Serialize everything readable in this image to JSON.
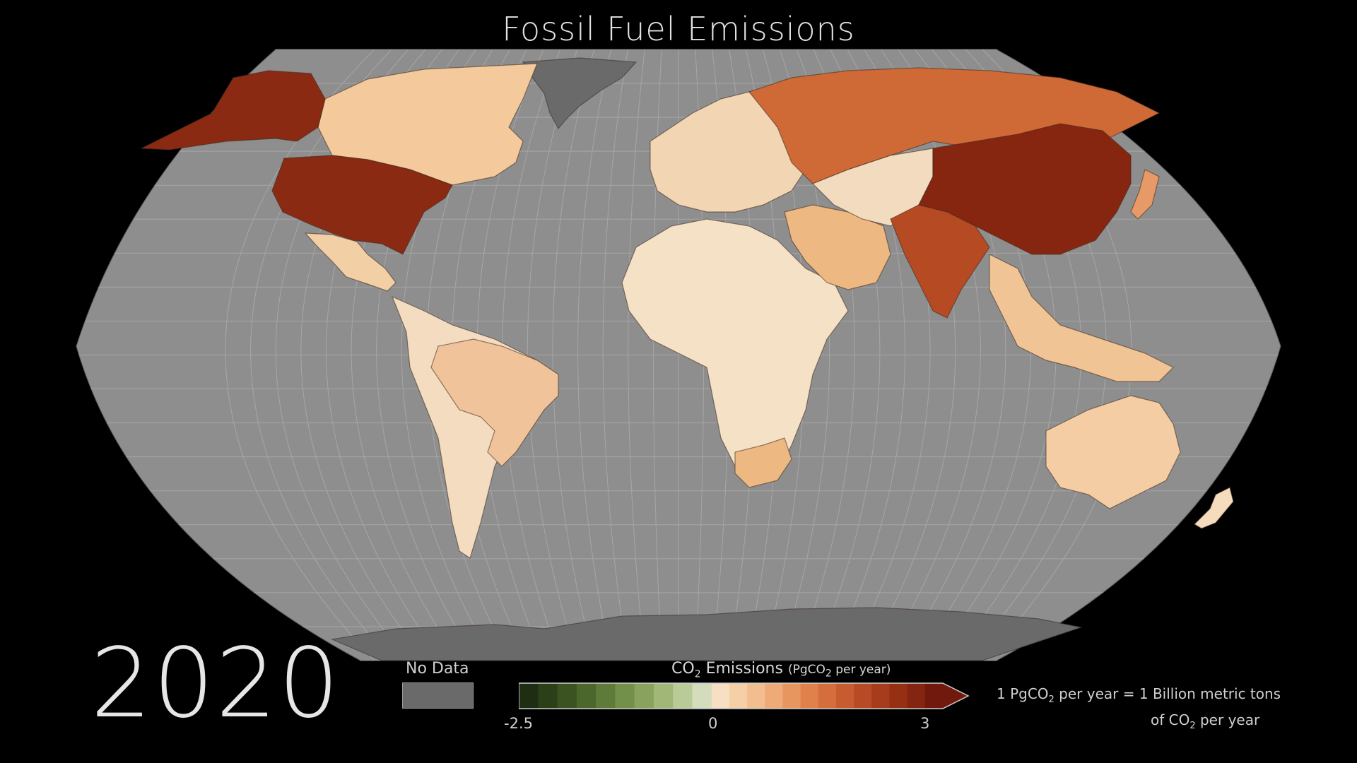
{
  "title": "Fossil Fuel Emissions",
  "year": "2020",
  "legend": {
    "no_data_label": "No Data",
    "title_prefix": "CO",
    "title_sub": "2",
    "title_main": " Emissions ",
    "units": "(PgCO",
    "units_sub": "2",
    "units_suffix": " per year)",
    "min_label": "-2.5",
    "mid_label": "0",
    "max_label": "3",
    "range": [
      -2.5,
      3
    ],
    "colors": {
      "no_data": "#6a6a6a",
      "negative": [
        "#1f2e12",
        "#2b3f18",
        "#3a5321",
        "#4b672b",
        "#5e7b39",
        "#73904a",
        "#89a35e",
        "#a0b777",
        "#b9cb97",
        "#d3dcbc"
      ],
      "positive": [
        "#f7dfc3",
        "#f5cfa8",
        "#f2be8f",
        "#eeaa77",
        "#e89660",
        "#e0814c",
        "#d46e3c",
        "#c75c30",
        "#b84b25",
        "#a73c1c",
        "#953015",
        "#832510",
        "#70190c"
      ]
    }
  },
  "note": {
    "line1_a": "1 PgCO",
    "line1_sub": "2",
    "line1_b": " per year = 1 Billion metric tons",
    "line2_a": "of CO",
    "line2_sub": "2",
    "line2_b": " per year"
  },
  "map": {
    "ocean_color": "#8e8e8e",
    "grid_color": "#a6a6a6",
    "regions": [
      {
        "name": "United States",
        "value": 2.6,
        "color": "#8b2a12"
      },
      {
        "name": "Alaska",
        "value": 2.6,
        "color": "#8b2a12"
      },
      {
        "name": "Canada",
        "value": 0.3,
        "color": "#f4c99c"
      },
      {
        "name": "Greenland",
        "value": null,
        "color": "#6a6a6a"
      },
      {
        "name": "Mexico",
        "value": 0.2,
        "color": "#f3cfa6"
      },
      {
        "name": "Brazil",
        "value": 0.25,
        "color": "#f1c39a"
      },
      {
        "name": "South America",
        "value": 0.1,
        "color": "#f4dcc0"
      },
      {
        "name": "Europe",
        "value": 0.15,
        "color": "#f2d6b4"
      },
      {
        "name": "Russia",
        "value": 1.3,
        "color": "#cf6a36"
      },
      {
        "name": "China",
        "value": 2.9,
        "color": "#872610"
      },
      {
        "name": "India",
        "value": 1.6,
        "color": "#b64a22"
      },
      {
        "name": "Middle East",
        "value": 0.4,
        "color": "#eeb882"
      },
      {
        "name": "Central Asia",
        "value": 0.1,
        "color": "#f3dbc0"
      },
      {
        "name": "Africa",
        "value": 0.05,
        "color": "#f5e1c6"
      },
      {
        "name": "South Africa",
        "value": 0.4,
        "color": "#eeb882"
      },
      {
        "name": "Southeast Asia",
        "value": 0.3,
        "color": "#f0c494"
      },
      {
        "name": "Japan",
        "value": 0.6,
        "color": "#e79a67"
      },
      {
        "name": "Australia",
        "value": 0.3,
        "color": "#f4cda4"
      },
      {
        "name": "New Zealand",
        "value": 0.05,
        "color": "#f5dcbd"
      },
      {
        "name": "Antarctica",
        "value": null,
        "color": "#6a6a6a"
      }
    ]
  }
}
